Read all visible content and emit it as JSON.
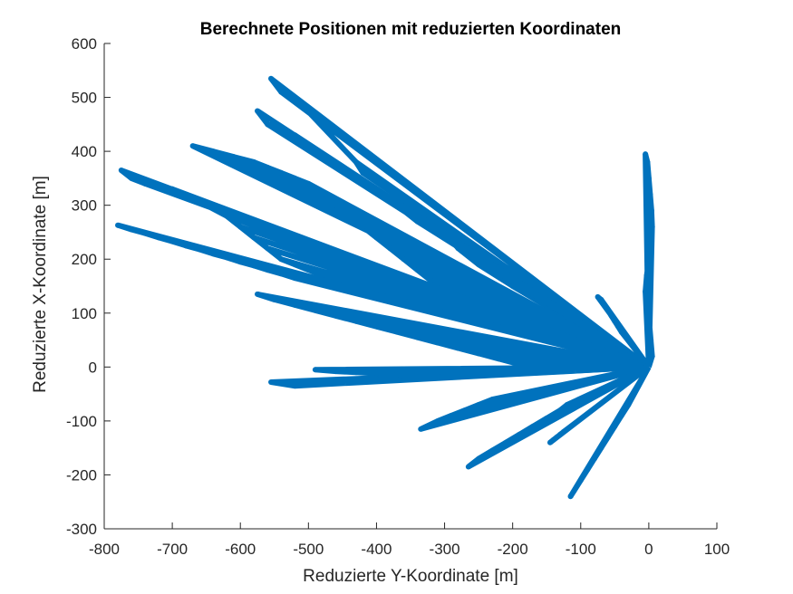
{
  "chart_data": {
    "type": "line",
    "title": "Berechnete Positionen mit reduzierten Koordinaten",
    "xlabel": "Reduzierte Y-Koordinate [m]",
    "ylabel": "Reduzierte X-Koordinate [m]",
    "xlim": [
      -800,
      100
    ],
    "ylim": [
      -300,
      600
    ],
    "x_ticks": [
      -800,
      -700,
      -600,
      -500,
      -400,
      -300,
      -200,
      -100,
      0,
      100
    ],
    "x_tick_labels": [
      "-800",
      "-700",
      "-600",
      "-500",
      "-400",
      "-300",
      "-200",
      "-100",
      "0",
      "100"
    ],
    "y_ticks": [
      -300,
      -200,
      -100,
      0,
      100,
      200,
      300,
      400,
      500,
      600
    ],
    "y_tick_labels": [
      "-300",
      "-200",
      "-100",
      "0",
      "100",
      "200",
      "300",
      "400",
      "500",
      "600"
    ],
    "grid": false,
    "line_color": "#0072BD",
    "origin": [
      0,
      0
    ],
    "series": [
      {
        "x": [
          -555,
          -540,
          -520,
          -430,
          -420,
          -400,
          -330,
          -300,
          -280,
          -250,
          -200,
          -170,
          -150,
          -140
        ],
        "y": [
          535,
          510,
          500,
          380,
          360,
          350,
          280,
          250,
          220,
          190,
          150,
          130,
          120,
          110
        ]
      },
      {
        "x": [
          -575,
          -560,
          -520,
          -500,
          -480,
          -460,
          -440,
          -420,
          -400,
          -380,
          -360,
          -340
        ],
        "y": [
          475,
          450,
          430,
          410,
          395,
          380,
          360,
          340,
          330,
          310,
          290,
          270
        ]
      },
      {
        "x": [
          -670,
          -640,
          -610,
          -580,
          -560,
          -540,
          -520,
          -500,
          -480,
          -460,
          -440,
          -420,
          -400,
          -380,
          -360,
          -340,
          -320,
          -300,
          -280,
          -260
        ],
        "y": [
          410,
          400,
          390,
          380,
          370,
          360,
          350,
          340,
          320,
          300,
          280,
          260,
          240,
          220,
          200,
          180,
          160,
          140,
          120,
          100
        ]
      },
      {
        "x": [
          -775,
          -760,
          -740,
          -700,
          -680,
          -650,
          -620,
          -600,
          -580,
          -560,
          -540,
          -520,
          -500,
          -480
        ],
        "y": [
          365,
          350,
          340,
          330,
          320,
          300,
          280,
          260,
          240,
          220,
          200,
          190,
          180,
          170
        ]
      },
      {
        "x": [
          -780,
          -760,
          -740,
          -720,
          -700,
          -680,
          -660,
          -640,
          -620,
          -600,
          -580,
          -560,
          -540,
          -520
        ],
        "y": [
          263,
          255,
          248,
          240,
          233,
          225,
          218,
          210,
          203,
          195,
          188,
          180,
          173,
          165
        ]
      },
      {
        "x": [
          -575,
          -550,
          -520,
          -490,
          -460,
          -430,
          -400,
          -370,
          -340,
          -310,
          -280,
          -250,
          -220,
          -190
        ],
        "y": [
          135,
          125,
          115,
          105,
          95,
          85,
          75,
          65,
          55,
          45,
          35,
          25,
          15,
          5
        ]
      },
      {
        "x": [
          -555,
          -520,
          -480,
          -440,
          -400,
          -360,
          -320,
          -280,
          -240,
          -200,
          -160,
          -120,
          -80
        ],
        "y": [
          -28,
          -35,
          -30,
          -25,
          -22,
          -18,
          -15,
          -12,
          -10,
          -7,
          -5,
          -3,
          -2
        ]
      },
      {
        "x": [
          -490,
          -460,
          -430,
          -400,
          -370,
          -340,
          -310,
          -280
        ],
        "y": [
          -5,
          -8,
          -10,
          -12,
          -14,
          -15,
          -17,
          -18
        ]
      },
      {
        "x": [
          -335,
          -310,
          -290,
          -270,
          -250,
          -230,
          -210,
          -190,
          -170,
          -150,
          -130,
          -110
        ],
        "y": [
          -115,
          -100,
          -90,
          -80,
          -70,
          -60,
          -55,
          -50,
          -45,
          -40,
          -35,
          -30
        ]
      },
      {
        "x": [
          -265,
          -250,
          -230,
          -210,
          -190,
          -170,
          -150,
          -130,
          -120
        ],
        "y": [
          -185,
          -170,
          -155,
          -140,
          -125,
          -110,
          -95,
          -80,
          -70
        ]
      },
      {
        "x": [
          -145,
          -140,
          -135,
          -130,
          -125
        ],
        "y": [
          -140,
          -135,
          -130,
          -125,
          -120
        ]
      },
      {
        "x": [
          -115,
          -110,
          -100,
          -90,
          -80,
          -70,
          -60,
          -50,
          -40,
          -30
        ],
        "y": [
          -240,
          -230,
          -210,
          -190,
          -170,
          -150,
          -130,
          -110,
          -90,
          -70
        ]
      },
      {
        "x": [
          -75,
          -70,
          -65,
          -60,
          -55,
          -50,
          -45,
          -40
        ],
        "y": [
          130,
          125,
          115,
          105,
          95,
          85,
          75,
          65
        ]
      },
      {
        "x": [
          -5,
          -2,
          0,
          2,
          4,
          5,
          3,
          0,
          -3,
          -5,
          -2,
          1,
          3,
          5
        ],
        "y": [
          395,
          380,
          350,
          320,
          290,
          260,
          230,
          200,
          170,
          140,
          110,
          80,
          50,
          20
        ]
      }
    ]
  }
}
